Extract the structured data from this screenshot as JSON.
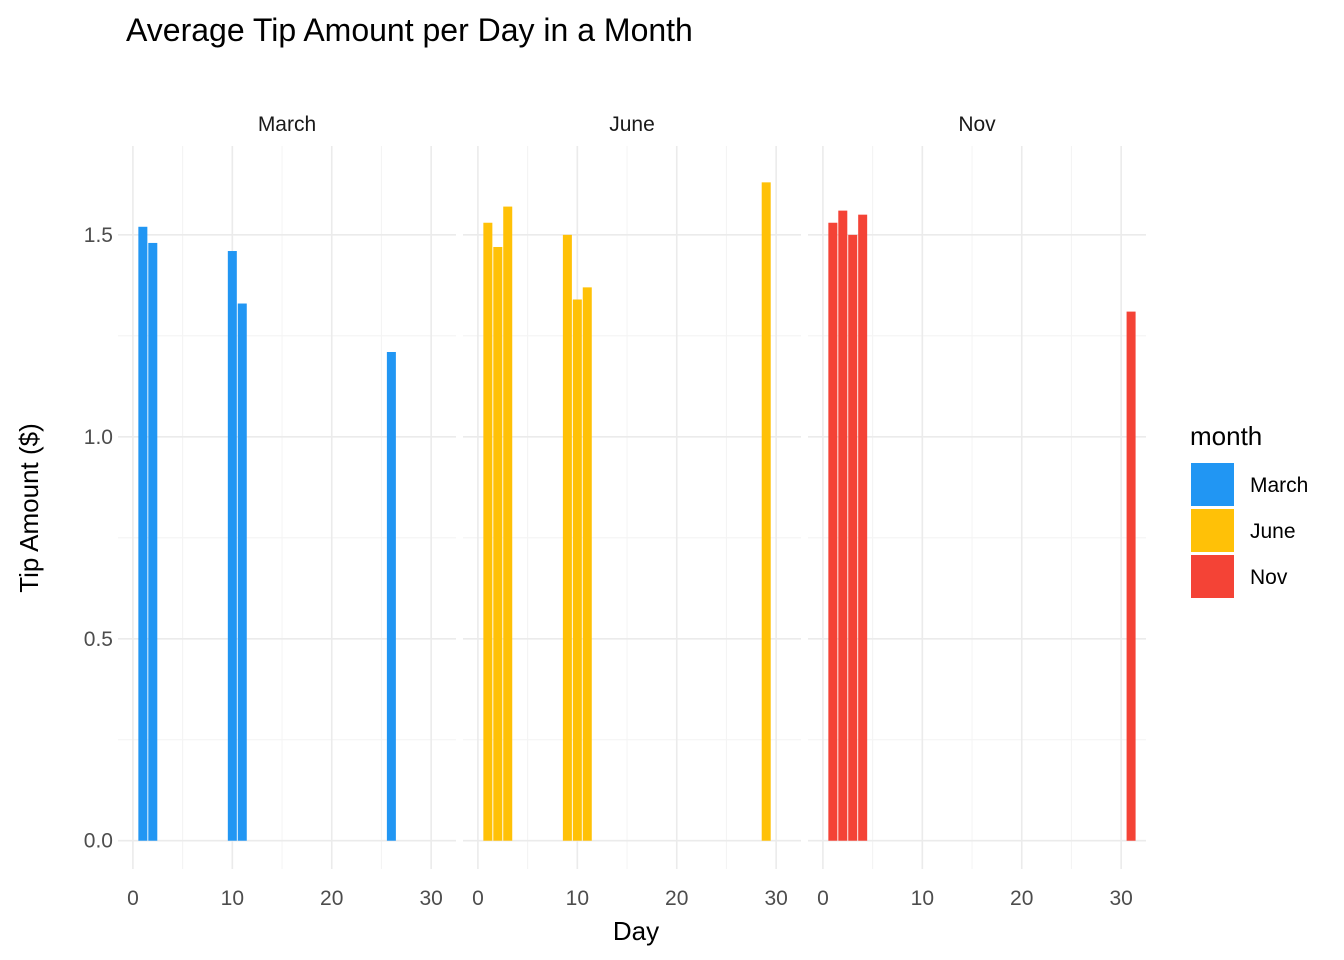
{
  "chart_data": {
    "type": "bar",
    "title": "Average Tip Amount per Day in a Month",
    "xlabel": "Day",
    "ylabel": "Tip Amount ($)",
    "xlim": [
      -1.5,
      32.5
    ],
    "ylim": [
      -0.07,
      1.72
    ],
    "x_ticks": [
      0,
      10,
      20,
      30
    ],
    "y_ticks": [
      0.0,
      0.5,
      1.0,
      1.5
    ],
    "x_tick_labels": [
      "0",
      "10",
      "20",
      "30"
    ],
    "y_tick_labels": [
      "0.0",
      "0.5",
      "1.0",
      "1.5"
    ],
    "grid": true,
    "legend": {
      "title": "month",
      "position": "right",
      "entries": [
        {
          "label": "March",
          "color": "#2196F3"
        },
        {
          "label": "June",
          "color": "#FFC107"
        },
        {
          "label": "Nov",
          "color": "#F44336"
        }
      ]
    },
    "facets": [
      {
        "label": "March",
        "color": "#2196F3",
        "x": [
          1,
          2,
          10,
          11,
          26
        ],
        "values": [
          1.52,
          1.48,
          1.46,
          1.33,
          1.21
        ]
      },
      {
        "label": "June",
        "color": "#FFC107",
        "x": [
          1,
          2,
          3,
          9,
          10,
          11,
          29
        ],
        "values": [
          1.53,
          1.47,
          1.57,
          1.5,
          1.34,
          1.37,
          1.63
        ]
      },
      {
        "label": "Nov",
        "color": "#F44336",
        "x": [
          1,
          2,
          3,
          4,
          31
        ],
        "values": [
          1.53,
          1.56,
          1.5,
          1.55,
          1.31
        ]
      }
    ]
  }
}
